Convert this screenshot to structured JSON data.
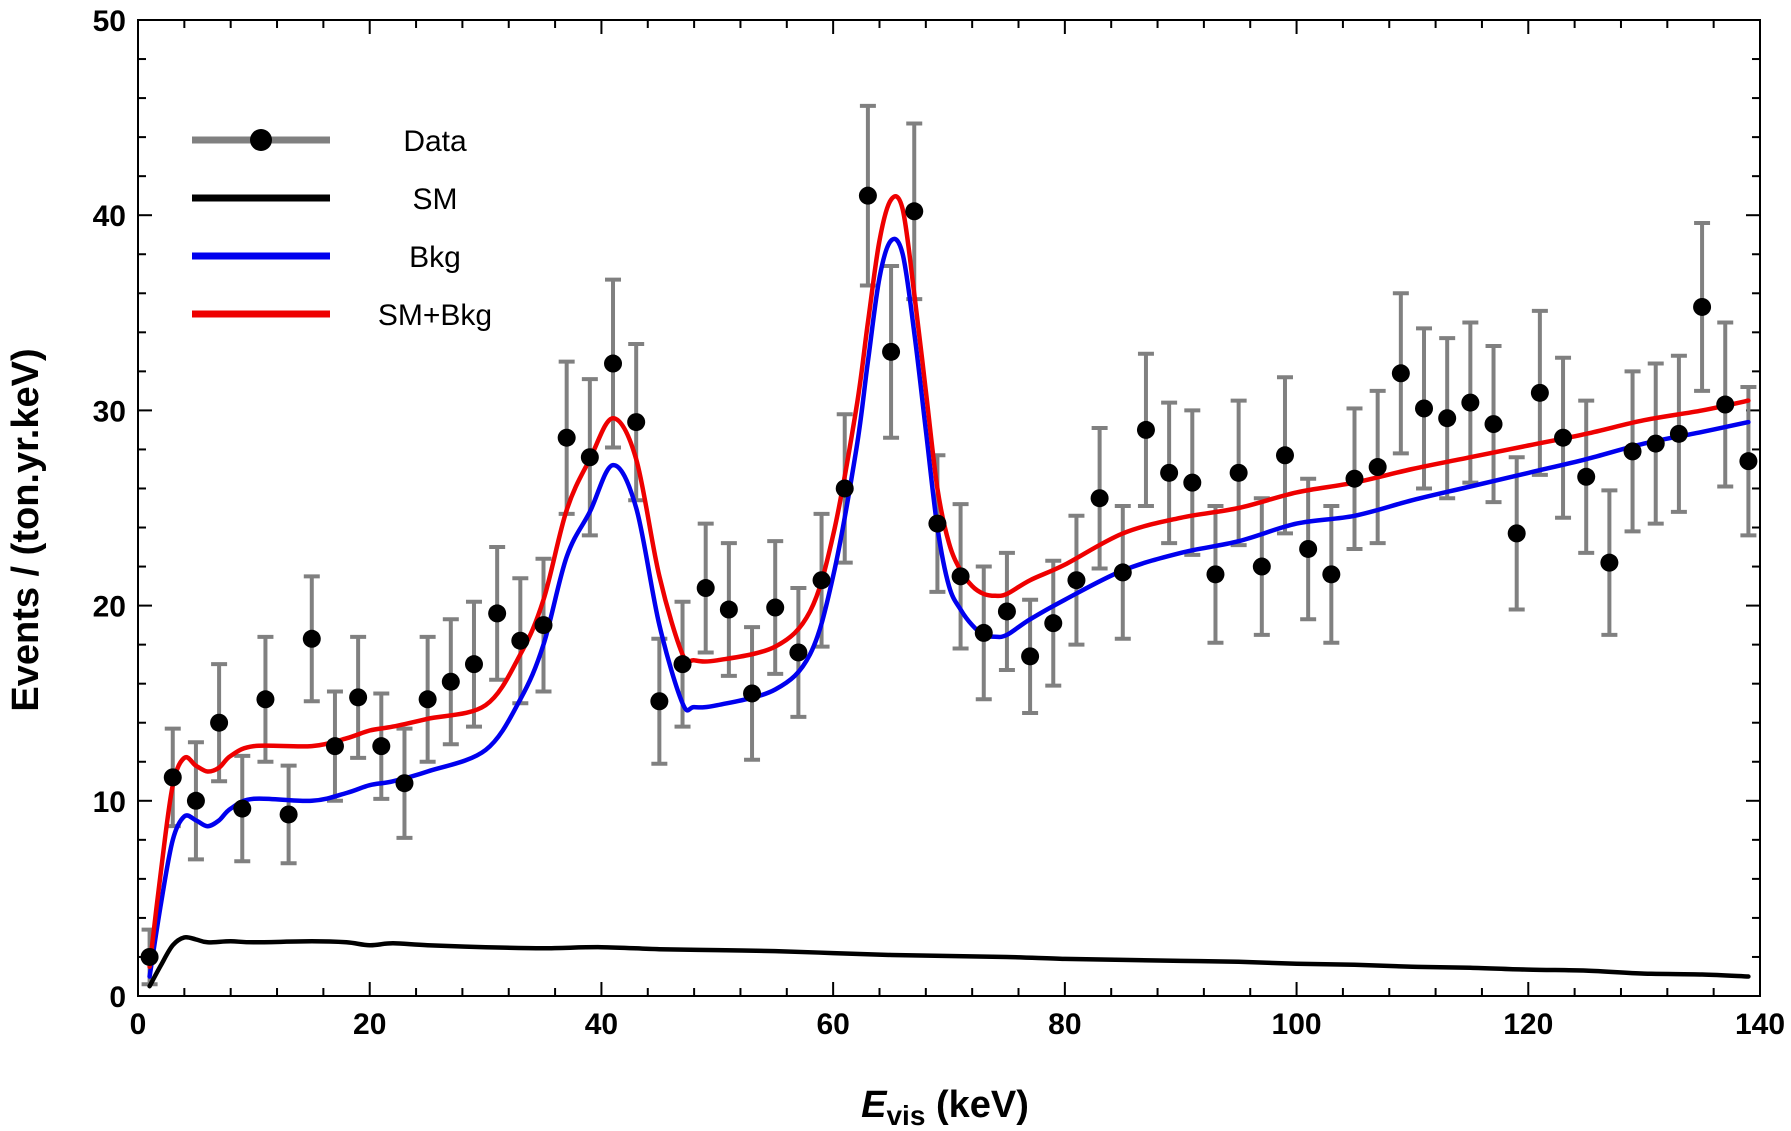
{
  "chart_data": {
    "type": "line",
    "title": "",
    "xlabel_main": "E",
    "xlabel_sub": "vis",
    "xlabel_unit": " (keV)",
    "ylabel": "Events / (ton.yr.keV)",
    "xlim": [
      0,
      140
    ],
    "ylim": [
      0,
      50
    ],
    "x_ticks": [
      0,
      20,
      40,
      60,
      80,
      100,
      120,
      140
    ],
    "y_ticks": [
      0,
      10,
      20,
      30,
      40,
      50
    ],
    "grid": false,
    "legend_position": "top-left",
    "legend": [
      {
        "name": "Data",
        "color": "#808080",
        "marker": "#000000"
      },
      {
        "name": "SM",
        "color": "#000000"
      },
      {
        "name": "Bkg",
        "color": "#0000ee"
      },
      {
        "name": "SM+Bkg",
        "color": "#ee0000"
      }
    ],
    "data_points": {
      "x": [
        1,
        3,
        5,
        7,
        9,
        11,
        13,
        15,
        17,
        19,
        21,
        23,
        25,
        27,
        29,
        31,
        33,
        35,
        37,
        39,
        41,
        43,
        45,
        47,
        49,
        51,
        53,
        55,
        57,
        59,
        61,
        63,
        65,
        67,
        69,
        71,
        73,
        75,
        77,
        79,
        81,
        83,
        85,
        87,
        89,
        91,
        93,
        95,
        97,
        99,
        101,
        103,
        105,
        107,
        109,
        111,
        113,
        115,
        117,
        119,
        121,
        123,
        125,
        127,
        129,
        131,
        133,
        135,
        137,
        139
      ],
      "y": [
        2.0,
        11.2,
        10.0,
        14.0,
        9.6,
        15.2,
        9.3,
        18.3,
        12.8,
        15.3,
        12.8,
        10.9,
        15.2,
        16.1,
        17.0,
        19.6,
        18.2,
        19.0,
        28.6,
        27.6,
        32.4,
        29.4,
        15.1,
        17.0,
        20.9,
        19.8,
        15.5,
        19.9,
        17.6,
        21.3,
        26.0,
        41.0,
        33.0,
        40.2,
        24.2,
        21.5,
        18.6,
        19.7,
        17.4,
        19.1,
        21.3,
        25.5,
        21.7,
        29.0,
        26.8,
        26.3,
        21.6,
        26.8,
        22.0,
        27.7,
        22.9,
        21.6,
        26.5,
        27.1,
        31.9,
        30.1,
        29.6,
        30.4,
        29.3,
        23.7,
        30.9,
        28.6,
        26.6,
        22.2,
        27.9,
        28.3,
        28.8,
        35.3,
        30.3,
        27.4
      ],
      "err": [
        1.4,
        2.5,
        3.0,
        3.0,
        2.7,
        3.2,
        2.5,
        3.2,
        2.8,
        3.1,
        2.7,
        2.8,
        3.2,
        3.2,
        3.2,
        3.4,
        3.2,
        3.4,
        3.9,
        4.0,
        4.3,
        4.0,
        3.2,
        3.2,
        3.3,
        3.4,
        3.4,
        3.4,
        3.3,
        3.4,
        3.8,
        4.6,
        4.4,
        4.5,
        3.5,
        3.7,
        3.4,
        3.0,
        2.9,
        3.2,
        3.3,
        3.6,
        3.4,
        3.9,
        3.6,
        3.7,
        3.5,
        3.7,
        3.5,
        4.0,
        3.6,
        3.5,
        3.6,
        3.9,
        4.1,
        4.1,
        4.1,
        4.1,
        4.0,
        3.9,
        4.2,
        4.1,
        3.9,
        3.7,
        4.1,
        4.1,
        4.0,
        4.3,
        4.2,
        3.8
      ]
    },
    "series": [
      {
        "name": "SM",
        "x": [
          1,
          2,
          3,
          4,
          5,
          6,
          8,
          10,
          15,
          18,
          20,
          22,
          25,
          30,
          35,
          40,
          45,
          50,
          55,
          60,
          65,
          70,
          75,
          80,
          85,
          90,
          95,
          100,
          105,
          110,
          115,
          120,
          125,
          130,
          135,
          139
        ],
        "y": [
          0.5,
          1.6,
          2.6,
          3.0,
          2.9,
          2.75,
          2.8,
          2.75,
          2.8,
          2.75,
          2.6,
          2.7,
          2.6,
          2.5,
          2.45,
          2.5,
          2.4,
          2.35,
          2.3,
          2.2,
          2.1,
          2.05,
          2.0,
          1.9,
          1.85,
          1.8,
          1.75,
          1.65,
          1.6,
          1.5,
          1.45,
          1.35,
          1.3,
          1.15,
          1.1,
          1.0
        ]
      },
      {
        "name": "Bkg",
        "x": [
          1,
          2,
          3,
          4,
          5,
          6,
          7,
          8,
          10,
          15,
          18,
          20,
          22,
          25,
          30,
          33,
          35,
          37,
          39,
          41,
          43,
          45,
          47,
          48,
          50,
          55,
          58,
          60,
          62,
          63,
          64,
          65,
          66,
          67,
          68,
          69,
          70,
          71,
          72,
          73,
          74,
          75,
          77,
          80,
          85,
          90,
          95,
          100,
          105,
          110,
          115,
          120,
          125,
          130,
          135,
          139
        ],
        "y": [
          1.0,
          4.8,
          8.0,
          9.2,
          9.0,
          8.7,
          9.0,
          9.6,
          10.1,
          10.0,
          10.4,
          10.8,
          11.0,
          11.5,
          12.6,
          15.2,
          18.0,
          22.5,
          24.8,
          27.2,
          25.0,
          19.0,
          15.0,
          14.8,
          14.9,
          15.7,
          17.5,
          21.5,
          28.0,
          32.5,
          36.8,
          38.7,
          38.0,
          34.0,
          29.0,
          24.0,
          21.0,
          19.8,
          19.0,
          18.5,
          18.4,
          18.5,
          19.3,
          20.3,
          21.8,
          22.7,
          23.3,
          24.2,
          24.6,
          25.4,
          26.1,
          26.8,
          27.5,
          28.3,
          28.9,
          29.4
        ]
      },
      {
        "name": "SM+Bkg",
        "x": [
          1,
          2,
          3,
          4,
          5,
          6,
          7,
          8,
          10,
          15,
          18,
          20,
          22,
          25,
          30,
          33,
          35,
          37,
          39,
          41,
          43,
          45,
          47,
          48,
          50,
          55,
          58,
          60,
          62,
          63,
          64,
          65,
          66,
          67,
          68,
          69,
          70,
          71,
          72,
          73,
          74,
          75,
          77,
          80,
          85,
          90,
          95,
          100,
          105,
          110,
          115,
          120,
          125,
          130,
          135,
          139
        ],
        "y": [
          1.5,
          6.5,
          10.8,
          12.2,
          11.8,
          11.5,
          11.7,
          12.3,
          12.8,
          12.8,
          13.2,
          13.6,
          13.8,
          14.2,
          14.9,
          17.5,
          20.3,
          24.9,
          27.5,
          29.6,
          27.5,
          21.5,
          17.5,
          17.2,
          17.2,
          17.9,
          19.7,
          23.6,
          30.1,
          34.5,
          38.7,
          40.8,
          40.3,
          36.0,
          31.0,
          26.0,
          23.2,
          21.8,
          21.0,
          20.6,
          20.5,
          20.6,
          21.3,
          22.1,
          23.7,
          24.5,
          25.0,
          25.8,
          26.3,
          27.0,
          27.6,
          28.2,
          28.8,
          29.5,
          30.0,
          30.5
        ]
      }
    ]
  }
}
